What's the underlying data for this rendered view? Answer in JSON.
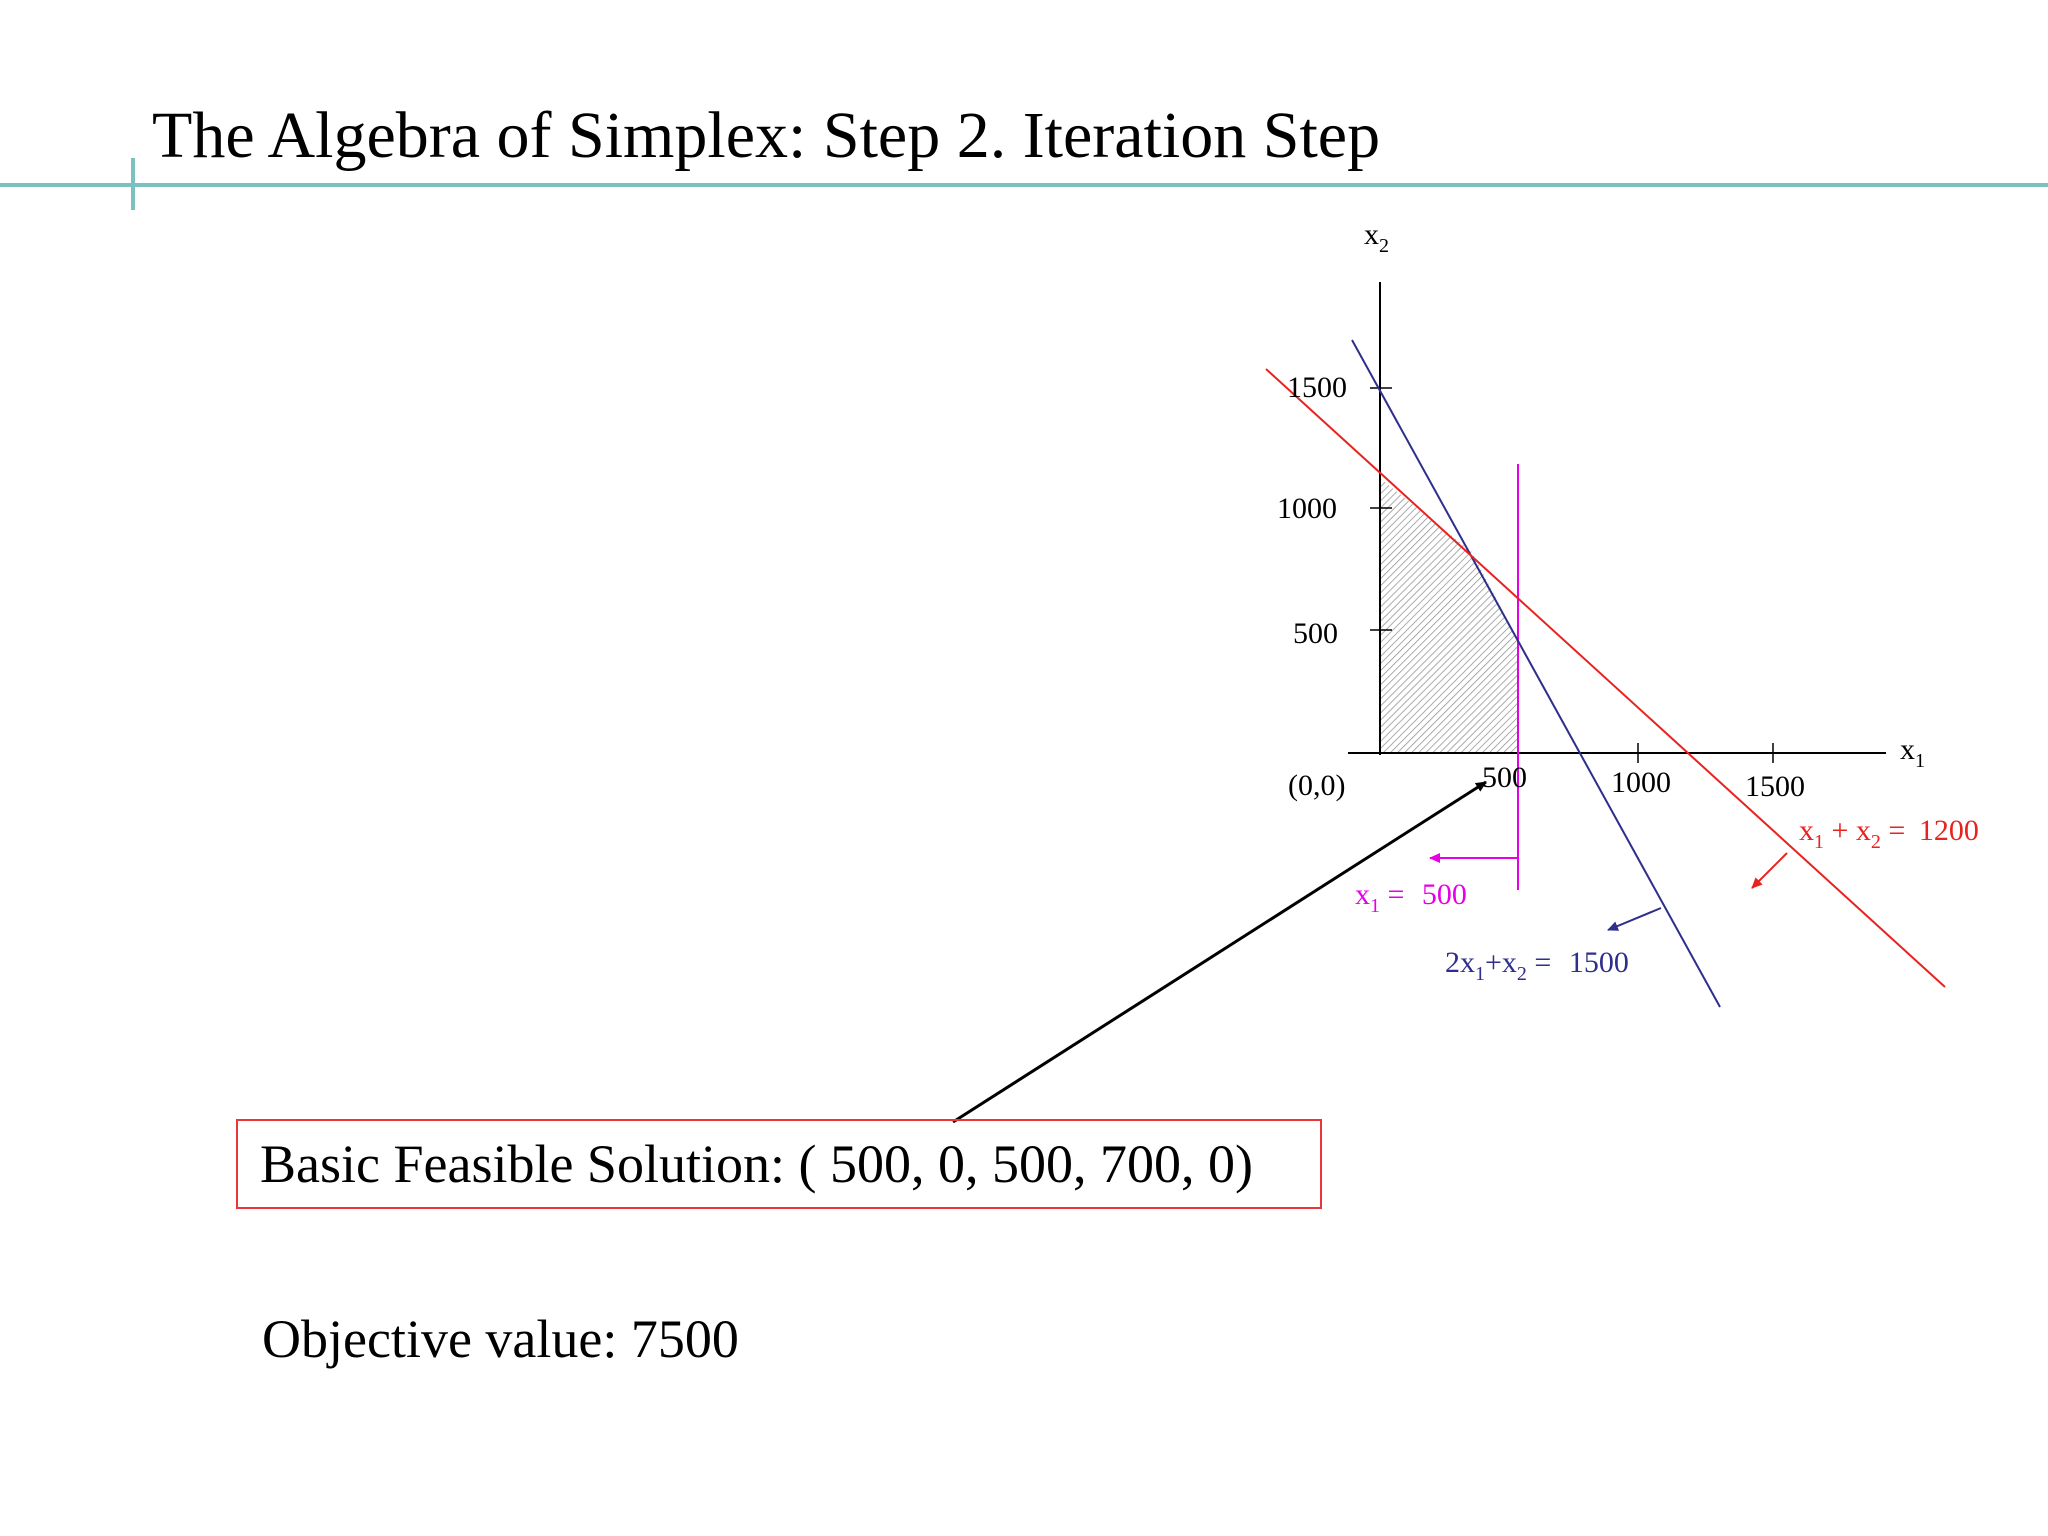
{
  "slide": {
    "title": "The Algebra of Simplex: Step 2. Iteration Step",
    "basic_feasible_solution": "Basic Feasible Solution: ( 500, 0, 500, 700, 0)",
    "objective_value": "Objective value: 7500"
  },
  "diagram": {
    "axis_x_label": "x",
    "axis_x_sub": "1",
    "axis_y_label": "x",
    "axis_y_sub": "2",
    "origin_label": "(0,0)",
    "x_ticks": [
      "500",
      "1000",
      "1500"
    ],
    "y_ticks": [
      "500",
      "1000",
      "1500"
    ],
    "constraints": [
      {
        "lhs_parts": [
          "x",
          "1",
          " = "
        ],
        "rhs": "500",
        "color": "#e600e6"
      },
      {
        "lhs_parts": [
          "2x",
          "1",
          "+x",
          "2",
          " = "
        ],
        "rhs": "1500",
        "color": "#2e2e8c"
      },
      {
        "lhs_parts": [
          "x",
          "1",
          " + x",
          "2",
          " = "
        ],
        "rhs": "1200",
        "color": "#e8231f"
      }
    ],
    "feasible_region_fill": "hatched-gray"
  },
  "colors": {
    "title_rule": "#79c2bf",
    "box_border": "#e8363a",
    "constraint_x1": "#e600e6",
    "constraint_2x1_x2": "#2e2e8c",
    "constraint_x1_x2": "#e8231f"
  }
}
